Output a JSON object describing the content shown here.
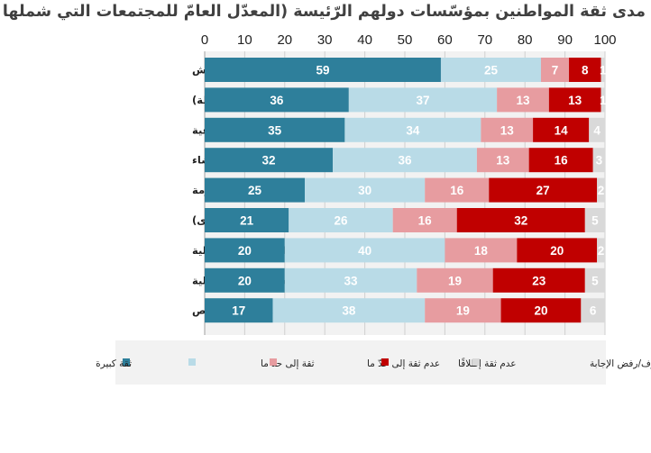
{
  "chart_data": {
    "type": "bar",
    "orientation": "horizontal",
    "stacked": true,
    "title": "مدى ثقة المواطنين بمؤسّسات دولهم الرّئيسة (المعدّل العامّ للمجتمعات التي شملها الاستطلاع)",
    "xlim": [
      0,
      100
    ],
    "x_ticks": [
      "0",
      "10",
      "20",
      "30",
      "40",
      "50",
      "60",
      "70",
      "80",
      "90",
      "100"
    ],
    "grid": true,
    "legend_position": "bottom",
    "categories": [
      "الجيش",
      "الأمن العام (الشرطة)",
      "المحاكم الشرعية",
      "جهاز القضاء",
      "الحكومة",
      "مجلس تشريعي (نواب، شعب، الشورى)",
      "وسائل الإعلام المحلية",
      "المجالس البلدية/ المحلية",
      "شركات القطاع الخاص"
    ],
    "series": [
      {
        "name": "ثقة كبيرة",
        "color": "#2e7f9b",
        "label_color": "#ffffff",
        "values": [
          59,
          36,
          35,
          32,
          25,
          21,
          20,
          20,
          17
        ]
      },
      {
        "name": "ثقة إلى حدّ ما",
        "color": "#b9dbe7",
        "label_color": "#ffffff",
        "values": [
          25,
          37,
          34,
          36,
          30,
          26,
          40,
          33,
          38
        ]
      },
      {
        "name": "عدم ثقة إلى حدّ ما",
        "color": "#e79ca0",
        "label_color": "#ffffff",
        "values": [
          7,
          13,
          13,
          13,
          16,
          16,
          18,
          19,
          19
        ]
      },
      {
        "name": "عدم ثقة إطلاقًا",
        "color": "#c00000",
        "label_color": "#ffffff",
        "values": [
          8,
          13,
          14,
          16,
          27,
          32,
          20,
          23,
          20
        ]
      },
      {
        "name": "لا أعرف/رفض الإجابة",
        "color": "#d9d9d9",
        "label_color": "#ffffff",
        "values": [
          1,
          1,
          4,
          3,
          2,
          5,
          2,
          5,
          6
        ]
      }
    ]
  }
}
